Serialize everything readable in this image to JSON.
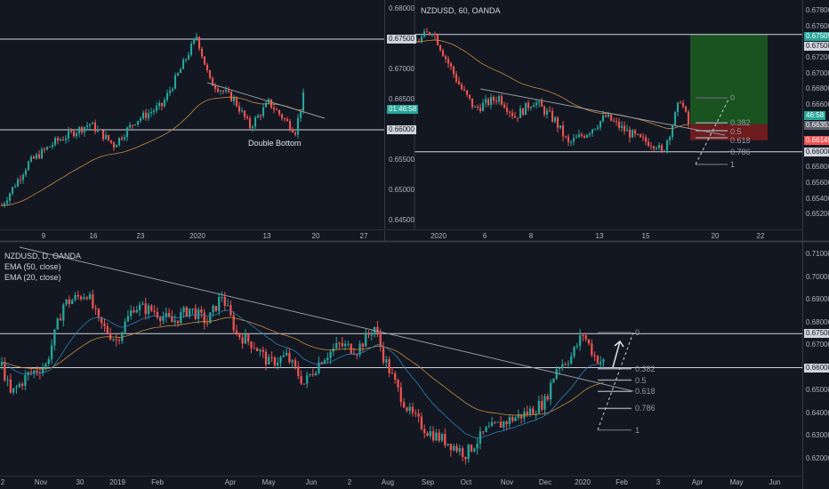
{
  "colors": {
    "up": "#26a69a",
    "down": "#ef5350",
    "bg": "#131722",
    "ema50": "#c78a3b",
    "ema20": "#2e7fb8",
    "level": "#d1d4dc",
    "target": "#1b5e20",
    "stop": "#7f1d1d"
  },
  "top_left": {
    "annotation": "Double Bottom",
    "y_ticks": [
      "0.68000",
      "0.67000",
      "0.66500",
      "0.65500",
      "0.65000",
      "0.64500"
    ],
    "y_tick_values": [
      0.68,
      0.67,
      0.665,
      0.655,
      0.65,
      0.645
    ],
    "levels": [
      {
        "label": "0.67500",
        "value": 0.675
      },
      {
        "label": "0.66000",
        "value": 0.66
      }
    ],
    "countdown": {
      "label": "01:46:58",
      "value": 0.6635
    },
    "x_ticks": [
      "9",
      "16",
      "23",
      "2020",
      "13",
      "20",
      "27"
    ],
    "price_path": [
      [
        0,
        0.6475
      ],
      [
        10,
        0.6545
      ],
      [
        20,
        0.658
      ],
      [
        33,
        0.661
      ],
      [
        42,
        0.6575
      ],
      [
        50,
        0.6615
      ],
      [
        60,
        0.664
      ],
      [
        67,
        0.67
      ],
      [
        73,
        0.6755
      ],
      [
        78,
        0.668
      ],
      [
        87,
        0.665
      ],
      [
        93,
        0.6605
      ],
      [
        100,
        0.6645
      ],
      [
        110,
        0.6598
      ],
      [
        113,
        0.6655
      ]
    ]
  },
  "top_right": {
    "title": "NZDUSD, 60, OANDA",
    "y_ticks": [
      "0.67800",
      "0.67600",
      "0.67200",
      "0.67000",
      "0.66800",
      "0.66600",
      "0.65800",
      "0.65600",
      "0.65400",
      "0.65200"
    ],
    "y_tick_values": [
      0.678,
      0.676,
      0.672,
      0.67,
      0.668,
      0.666,
      0.658,
      0.656,
      0.654,
      0.652
    ],
    "price_labels": [
      {
        "label": "0.67505",
        "value": 0.67505,
        "style": "green"
      },
      {
        "label": "0.67500",
        "value": 0.675,
        "style": "plain"
      },
      {
        "label": "46:58",
        "value": 0.6646,
        "style": "green"
      },
      {
        "label": "0.66351",
        "value": 0.66351,
        "style": "gray"
      },
      {
        "label": "0.66149",
        "value": 0.66149,
        "style": "red"
      },
      {
        "label": "0.66000",
        "value": 0.66,
        "style": "plain"
      }
    ],
    "levels": [
      0.675,
      0.66
    ],
    "x_ticks": [
      "2020",
      "6",
      "8",
      "13",
      "15",
      "20",
      "22"
    ],
    "fib": [
      {
        "label": "0",
        "value": 0.6669
      },
      {
        "label": "0.382",
        "value": 0.6637
      },
      {
        "label": "0.5",
        "value": 0.6627
      },
      {
        "label": "0.618",
        "value": 0.6618
      },
      {
        "label": "0.786",
        "value": 0.66
      },
      {
        "label": "1",
        "value": 0.6584
      }
    ],
    "position": {
      "target": 0.67505,
      "entry": 0.66351,
      "stop": 0.66149
    },
    "price_path": [
      [
        0,
        0.674
      ],
      [
        6,
        0.6756
      ],
      [
        11,
        0.672
      ],
      [
        17,
        0.668
      ],
      [
        22,
        0.6655
      ],
      [
        31,
        0.667
      ],
      [
        37,
        0.6645
      ],
      [
        44,
        0.6665
      ],
      [
        52,
        0.664
      ],
      [
        57,
        0.661
      ],
      [
        64,
        0.6625
      ],
      [
        71,
        0.6645
      ],
      [
        77,
        0.663
      ],
      [
        84,
        0.6615
      ],
      [
        90,
        0.661
      ],
      [
        92,
        0.6597
      ],
      [
        96,
        0.6635
      ],
      [
        99,
        0.6668
      ],
      [
        102,
        0.6635
      ]
    ]
  },
  "bottom": {
    "title": "NZDUSD, D, OANDA",
    "indicators": [
      "EMA (50, close)",
      "EMA (20, close)"
    ],
    "y_ticks": [
      "0.71000",
      "0.70000",
      "0.69000",
      "0.68000",
      "0.67000",
      "0.65000",
      "0.64000",
      "0.63000",
      "0.62000"
    ],
    "y_tick_values": [
      0.71,
      0.7,
      0.69,
      0.68,
      0.67,
      0.65,
      0.64,
      0.63,
      0.62
    ],
    "levels": [
      {
        "label": "0.67500",
        "value": 0.675
      },
      {
        "label": "0.66000",
        "value": 0.66
      }
    ],
    "x_ticks": [
      "2",
      "Nov",
      "30",
      "2019",
      "Feb",
      "Apr",
      "May",
      "Jun",
      "2",
      "Aug",
      "Sep",
      "Oct",
      "Nov",
      "Dec",
      "2020",
      "Feb",
      "3",
      "Apr",
      "May",
      "Jun"
    ],
    "fib": [
      {
        "label": "0",
        "value": 0.6755
      },
      {
        "label": "0.382",
        "value": 0.6595
      },
      {
        "label": "0.5",
        "value": 0.6545
      },
      {
        "label": "0.618",
        "value": 0.6495
      },
      {
        "label": "0.786",
        "value": 0.642
      },
      {
        "label": "1",
        "value": 0.6325
      }
    ],
    "price_path": [
      [
        0,
        0.661
      ],
      [
        3,
        0.648
      ],
      [
        9,
        0.657
      ],
      [
        15,
        0.661
      ],
      [
        21,
        0.688
      ],
      [
        29,
        0.693
      ],
      [
        33,
        0.68
      ],
      [
        39,
        0.672
      ],
      [
        45,
        0.687
      ],
      [
        52,
        0.685
      ],
      [
        58,
        0.68
      ],
      [
        64,
        0.686
      ],
      [
        70,
        0.68
      ],
      [
        75,
        0.692
      ],
      [
        80,
        0.675
      ],
      [
        86,
        0.67
      ],
      [
        91,
        0.662
      ],
      [
        97,
        0.665
      ],
      [
        103,
        0.653
      ],
      [
        109,
        0.664
      ],
      [
        115,
        0.67
      ],
      [
        121,
        0.668
      ],
      [
        127,
        0.678
      ],
      [
        130,
        0.665
      ],
      [
        135,
        0.65
      ],
      [
        139,
        0.64
      ],
      [
        145,
        0.632
      ],
      [
        152,
        0.627
      ],
      [
        158,
        0.622
      ],
      [
        165,
        0.632
      ],
      [
        173,
        0.637
      ],
      [
        179,
        0.64
      ],
      [
        185,
        0.645
      ],
      [
        189,
        0.66
      ],
      [
        194,
        0.665
      ],
      [
        198,
        0.675
      ],
      [
        202,
        0.665
      ],
      [
        205,
        0.662
      ]
    ]
  }
}
